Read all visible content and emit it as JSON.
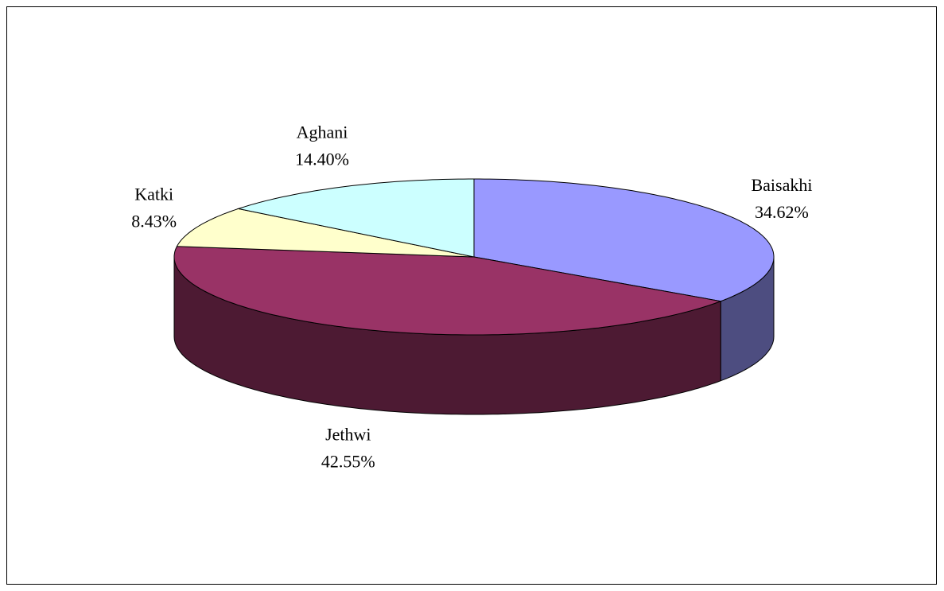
{
  "chart_data": {
    "type": "pie3d",
    "categories": [
      "Baisakhi",
      "Jethwi",
      "Katki",
      "Aghani"
    ],
    "values": [
      34.62,
      42.55,
      8.43,
      14.4
    ],
    "value_labels": [
      "34.62%",
      "42.55%",
      "8.43%",
      "14.40%"
    ],
    "colors": [
      "#9999ff",
      "#993366",
      "#ffffcc",
      "#ccffff"
    ]
  }
}
